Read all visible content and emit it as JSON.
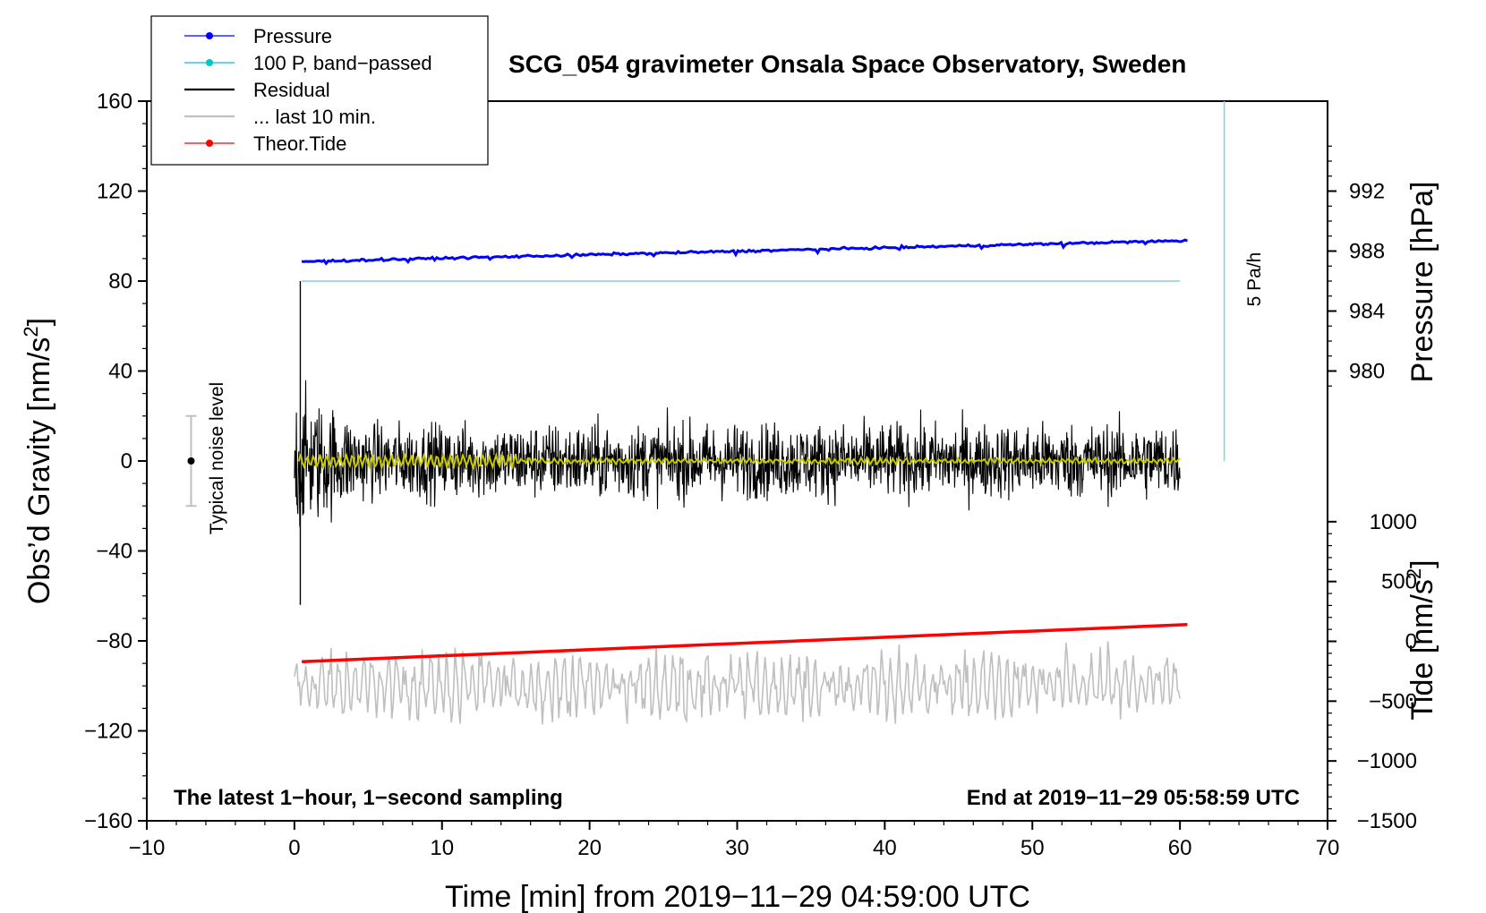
{
  "chart_data": {
    "type": "line",
    "title": "SCG_054 gravimeter Onsala Space Observatory, Sweden",
    "xlabel": "Time [min] from 2019−11−29 04:59:00 UTC",
    "ylabel_left": "Obs’d Gravity [nm/s",
    "ylabel_left_sup": "2",
    "ylabel_left_close": "]",
    "ylabel_right_pressure": "Pressure [hPa]",
    "ylabel_right_tide": "Tide [nm/s",
    "ylabel_right_tide_sup": "2",
    "ylabel_right_tide_close": "]",
    "xlim": [
      -10,
      70
    ],
    "ylim_left": [
      -160,
      160
    ],
    "x_ticks": [
      -10,
      0,
      10,
      20,
      30,
      40,
      50,
      60,
      70
    ],
    "x_tick_labels": [
      "−10",
      "0",
      "10",
      "20",
      "30",
      "40",
      "50",
      "60",
      "70"
    ],
    "y_ticks_left": [
      160,
      120,
      80,
      40,
      0,
      -40,
      -80,
      -120,
      -160
    ],
    "y_tick_labels_left": [
      "160",
      "120",
      "80",
      "40",
      "0",
      "−40",
      "−80",
      "−120",
      "−160"
    ],
    "pressure_ticks": [
      992,
      988,
      984,
      980
    ],
    "pressure_tick_labels": [
      "992",
      "988",
      "984",
      "980"
    ],
    "pressure_axis_map": {
      "hpa_at_0": 980,
      "gravity_at_0": 40,
      "hpa_at_1": 992,
      "gravity_at_1": 120
    },
    "tide_ticks": [
      1000,
      500,
      0,
      -500,
      -1000,
      -1500
    ],
    "tide_tick_labels": [
      "1000",
      "500",
      "0",
      "−500",
      "−1000",
      "−1500"
    ],
    "tide_axis_map": {
      "tide_at_0": -1500,
      "gravity_at_0": -160,
      "tide_at_1": 1000,
      "gravity_at_1": -27
    },
    "legend": [
      {
        "label": "Pressure",
        "color": "#0000ff",
        "marker": "dot"
      },
      {
        "label": "100 P, band−passed",
        "color": "#00c8c8",
        "marker": "dot"
      },
      {
        "label": "Residual",
        "color": "#000000",
        "marker": "line"
      },
      {
        "label": "... last 10 min.",
        "color": "#bfbfbf",
        "marker": "line"
      },
      {
        "label": "Theor.Tide",
        "color": "#ff0000",
        "marker": "dot"
      }
    ],
    "series": [
      {
        "name": "Pressure",
        "color": "#0000ff",
        "unit": "hPa",
        "x_range": [
          0.5,
          60.5
        ],
        "start": 987.3,
        "end": 988.7
      },
      {
        "name": "100 P, band−passed",
        "color": "#7fd7d7",
        "unit": "nm/s² (plotted)",
        "x_range": [
          0.5,
          60
        ],
        "value": 80
      },
      {
        "name": "Residual",
        "color": "#000000",
        "x_range": [
          0,
          60
        ],
        "amplitude": 15
      },
      {
        "name": "Residual smoothed",
        "color": "#c8c800",
        "x_range": [
          0.3,
          60
        ],
        "value": 0
      },
      {
        "name": "... last 10 min.",
        "color": "#bfbfbf",
        "x_range": [
          0,
          60
        ],
        "center": -100,
        "amplitude": 12
      },
      {
        "name": "Theor.Tide",
        "color": "#ff0000",
        "unit": "nm/s²",
        "x_range": [
          0.5,
          60.5
        ],
        "start": -170,
        "end": 140
      }
    ],
    "noise_bar": {
      "label": "Typical noise level",
      "x": -7,
      "center": 0,
      "half_range": 20
    },
    "rate_bar": {
      "label": "5 Pa/h",
      "x": 63,
      "from": 0,
      "to": 160
    },
    "annotations": {
      "bottom_left": "The latest 1−hour, 1−second sampling",
      "bottom_right": "End at 2019−11−29 05:58:59 UTC"
    }
  }
}
